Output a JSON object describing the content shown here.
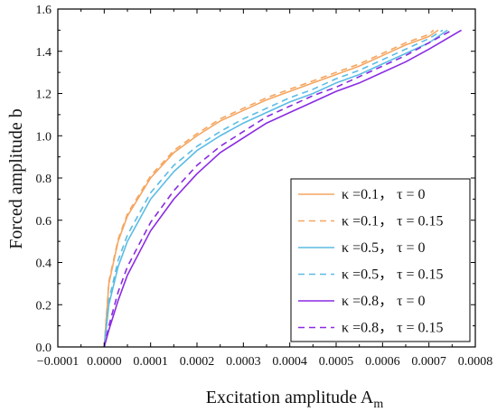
{
  "chart_data": {
    "type": "line",
    "title": "",
    "xlabel": "Excitation amplitude A",
    "xlabel_subscript": "m",
    "ylabel": "Forced amplitude b",
    "xlim": [
      -0.0001,
      0.0008
    ],
    "ylim": [
      0.0,
      1.6
    ],
    "x_ticks": [
      -0.0001,
      0.0,
      0.0001,
      0.0002,
      0.0003,
      0.0004,
      0.0005,
      0.0006,
      0.0007,
      0.0008
    ],
    "x_tick_labels": [
      "−0.0001",
      "0.0000",
      "0.0001",
      "0.0002",
      "0.0003",
      "0.0004",
      "0.0005",
      "0.0006",
      "0.0007",
      "0.0008"
    ],
    "y_ticks": [
      0.0,
      0.2,
      0.4,
      0.6,
      0.8,
      1.0,
      1.2,
      1.4,
      1.6
    ],
    "y_tick_labels": [
      "0.0",
      "0.2",
      "0.4",
      "0.6",
      "0.8",
      "1.0",
      "1.2",
      "1.4",
      "1.6"
    ],
    "grid": false,
    "legend_position": "lower-right",
    "series": [
      {
        "name": "κ =0.1， τ = 0",
        "color": "#f5a661",
        "dash": "solid",
        "points": [
          [
            0.0,
            0.0
          ],
          [
            1e-05,
            0.3
          ],
          [
            3e-05,
            0.5
          ],
          [
            5e-05,
            0.62
          ],
          [
            0.0001,
            0.8
          ],
          [
            0.00015,
            0.92
          ],
          [
            0.0002,
            1.0
          ],
          [
            0.00025,
            1.07
          ],
          [
            0.0003,
            1.12
          ],
          [
            0.00035,
            1.17
          ],
          [
            0.0004,
            1.21
          ],
          [
            0.00045,
            1.25
          ],
          [
            0.0005,
            1.29
          ],
          [
            0.00055,
            1.33
          ],
          [
            0.0006,
            1.38
          ],
          [
            0.00065,
            1.43
          ],
          [
            0.0007,
            1.47
          ],
          [
            0.00072,
            1.5
          ]
        ]
      },
      {
        "name": "κ =0.1， τ = 0.15",
        "color": "#f5a661",
        "dash": "dashed",
        "points": [
          [
            0.0,
            0.0
          ],
          [
            1e-05,
            0.31
          ],
          [
            3e-05,
            0.51
          ],
          [
            5e-05,
            0.63
          ],
          [
            0.0001,
            0.81
          ],
          [
            0.00015,
            0.93
          ],
          [
            0.0002,
            1.01
          ],
          [
            0.00025,
            1.08
          ],
          [
            0.0003,
            1.13
          ],
          [
            0.00035,
            1.18
          ],
          [
            0.0004,
            1.22
          ],
          [
            0.00045,
            1.26
          ],
          [
            0.0005,
            1.3
          ],
          [
            0.00055,
            1.34
          ],
          [
            0.0006,
            1.39
          ],
          [
            0.00065,
            1.44
          ],
          [
            0.0007,
            1.48
          ],
          [
            0.00071,
            1.5
          ]
        ]
      },
      {
        "name": "κ =0.5， τ = 0",
        "color": "#5bbce4",
        "dash": "solid",
        "points": [
          [
            0.0,
            0.0
          ],
          [
            1e-05,
            0.2
          ],
          [
            3e-05,
            0.38
          ],
          [
            5e-05,
            0.5
          ],
          [
            0.0001,
            0.7
          ],
          [
            0.00015,
            0.83
          ],
          [
            0.0002,
            0.93
          ],
          [
            0.00025,
            1.0
          ],
          [
            0.0003,
            1.06
          ],
          [
            0.00035,
            1.11
          ],
          [
            0.0004,
            1.16
          ],
          [
            0.00045,
            1.2
          ],
          [
            0.0005,
            1.25
          ],
          [
            0.00055,
            1.29
          ],
          [
            0.0006,
            1.34
          ],
          [
            0.00065,
            1.39
          ],
          [
            0.0007,
            1.44
          ],
          [
            0.00074,
            1.5
          ]
        ]
      },
      {
        "name": "κ =0.5， τ = 0.15",
        "color": "#5bbce4",
        "dash": "dashed",
        "points": [
          [
            0.0,
            0.0
          ],
          [
            1e-05,
            0.22
          ],
          [
            3e-05,
            0.41
          ],
          [
            5e-05,
            0.53
          ],
          [
            0.0001,
            0.73
          ],
          [
            0.00015,
            0.86
          ],
          [
            0.0002,
            0.95
          ],
          [
            0.00025,
            1.02
          ],
          [
            0.0003,
            1.08
          ],
          [
            0.00035,
            1.13
          ],
          [
            0.0004,
            1.18
          ],
          [
            0.00045,
            1.22
          ],
          [
            0.0005,
            1.27
          ],
          [
            0.00055,
            1.31
          ],
          [
            0.0006,
            1.36
          ],
          [
            0.00065,
            1.41
          ],
          [
            0.0007,
            1.46
          ],
          [
            0.00073,
            1.5
          ]
        ]
      },
      {
        "name": "κ =0.8， τ = 0",
        "color": "#8a2be2",
        "dash": "solid",
        "points": [
          [
            0.0,
            0.0
          ],
          [
            1e-05,
            0.08
          ],
          [
            3e-05,
            0.22
          ],
          [
            5e-05,
            0.34
          ],
          [
            0.0001,
            0.55
          ],
          [
            0.00015,
            0.7
          ],
          [
            0.0002,
            0.82
          ],
          [
            0.00025,
            0.92
          ],
          [
            0.0003,
            0.99
          ],
          [
            0.00035,
            1.06
          ],
          [
            0.0004,
            1.11
          ],
          [
            0.00045,
            1.16
          ],
          [
            0.0005,
            1.21
          ],
          [
            0.00055,
            1.25
          ],
          [
            0.0006,
            1.3
          ],
          [
            0.00065,
            1.35
          ],
          [
            0.0007,
            1.41
          ],
          [
            0.00077,
            1.5
          ]
        ]
      },
      {
        "name": "κ =0.8， τ = 0.15",
        "color": "#8a2be2",
        "dash": "dashed",
        "points": [
          [
            0.0,
            0.0
          ],
          [
            1e-05,
            0.1
          ],
          [
            3e-05,
            0.26
          ],
          [
            5e-05,
            0.38
          ],
          [
            0.0001,
            0.59
          ],
          [
            0.00015,
            0.74
          ],
          [
            0.0002,
            0.86
          ],
          [
            0.00025,
            0.95
          ],
          [
            0.0003,
            1.02
          ],
          [
            0.00035,
            1.09
          ],
          [
            0.0004,
            1.14
          ],
          [
            0.00045,
            1.19
          ],
          [
            0.0005,
            1.23
          ],
          [
            0.00055,
            1.28
          ],
          [
            0.0006,
            1.33
          ],
          [
            0.00065,
            1.38
          ],
          [
            0.0007,
            1.44
          ],
          [
            0.00075,
            1.5
          ]
        ]
      }
    ]
  }
}
